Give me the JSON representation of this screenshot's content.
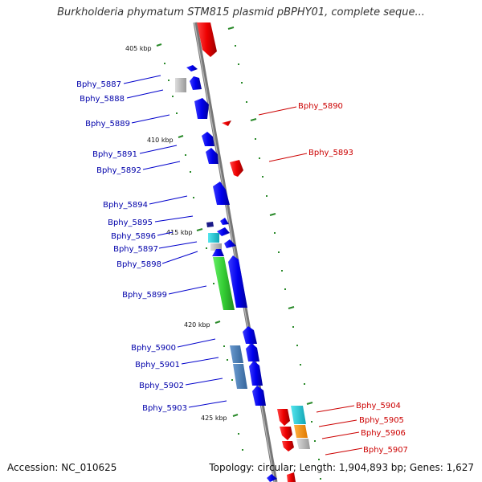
{
  "title": "Burkholderia phymatum STM815 plasmid pBPHY01, complete seque...",
  "footer": {
    "accession": "Accession: NC_010625",
    "summary": "Topology: circular; Length: 1,904,893 bp; Genes: 1,627"
  },
  "colors": {
    "axis": "#888888",
    "forward_gene": "#0000ee",
    "reverse_gene": "#ee0000",
    "tick": "#2a8a2a"
  },
  "kbp_labels": [
    {
      "text": "405 kbp",
      "kbp": 405
    },
    {
      "text": "410 kbp",
      "kbp": 410
    },
    {
      "text": "415 kbp",
      "kbp": 415
    },
    {
      "text": "420 kbp",
      "kbp": 420
    },
    {
      "text": "425 kbp",
      "kbp": 425
    }
  ],
  "genes_left": [
    {
      "name": "Bphy_5887"
    },
    {
      "name": "Bphy_5888"
    },
    {
      "name": "Bphy_5889"
    },
    {
      "name": "Bphy_5891"
    },
    {
      "name": "Bphy_5892"
    },
    {
      "name": "Bphy_5894"
    },
    {
      "name": "Bphy_5895"
    },
    {
      "name": "Bphy_5896"
    },
    {
      "name": "Bphy_5897"
    },
    {
      "name": "Bphy_5898"
    },
    {
      "name": "Bphy_5899"
    },
    {
      "name": "Bphy_5900"
    },
    {
      "name": "Bphy_5901"
    },
    {
      "name": "Bphy_5902"
    },
    {
      "name": "Bphy_5903"
    }
  ],
  "genes_right": [
    {
      "name": "Bphy_5890"
    },
    {
      "name": "Bphy_5893"
    },
    {
      "name": "Bphy_5904"
    },
    {
      "name": "Bphy_5905"
    },
    {
      "name": "Bphy_5906"
    },
    {
      "name": "Bphy_5907"
    }
  ]
}
